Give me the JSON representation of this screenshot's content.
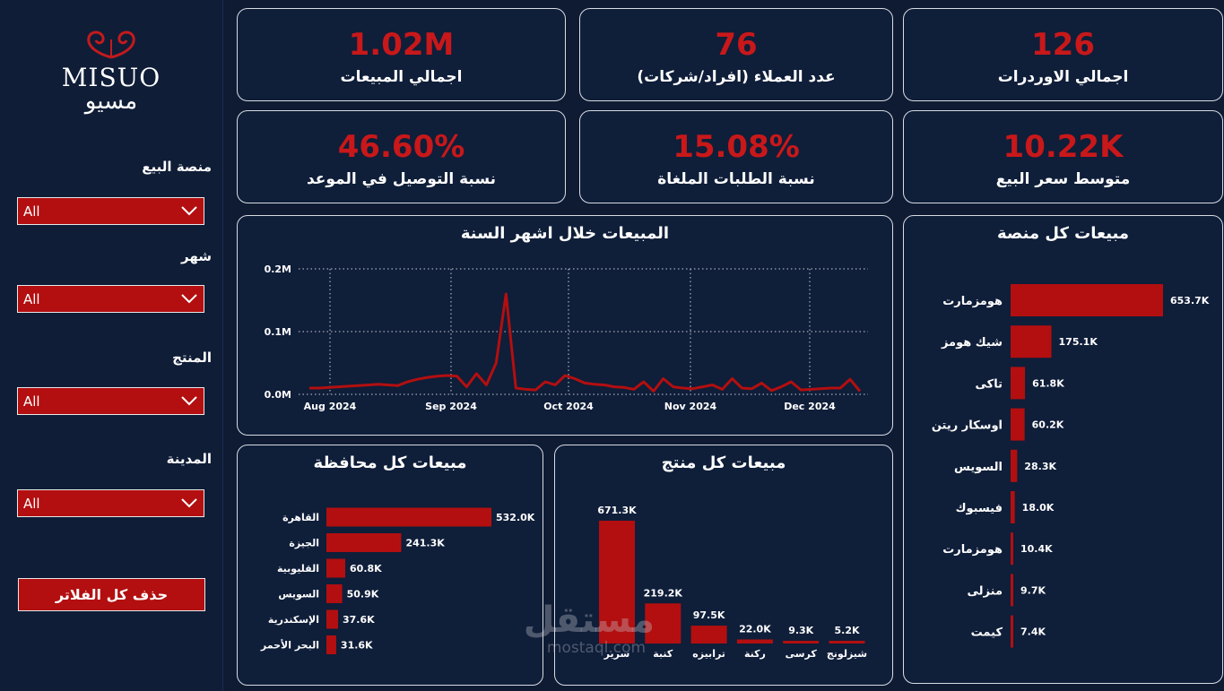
{
  "sidebar": {
    "logo_en": "MISUO",
    "logo_ar": "مسيو",
    "filters": [
      {
        "label": "منصة البيع",
        "value": "All"
      },
      {
        "label": "شهر",
        "value": "All"
      },
      {
        "label": "المنتج",
        "value": "All"
      },
      {
        "label": "المدينة",
        "value": "All"
      }
    ],
    "clear_label": "حذف كل الفلاتر"
  },
  "kpis": [
    {
      "value": "126",
      "label": "اجمالي الاوردرات"
    },
    {
      "value": "76",
      "label": "عدد العملاء (افراد/شركات)"
    },
    {
      "value": "1.02M",
      "label": "اجمالي المبيعات"
    },
    {
      "value": "10.22K",
      "label": "متوسط سعر البيع"
    },
    {
      "value": "15.08%",
      "label": "نسبة الطلبات الملغاة"
    },
    {
      "value": "46.60%",
      "label": "نسبة التوصيل في الموعد"
    }
  ],
  "colors": {
    "accent": "#b30f10",
    "kpi_value": "#c8181a",
    "background": "#0e1b33",
    "card": "#0f1e39"
  },
  "watermark": {
    "ar": "مستقل",
    "en": "mostaql.com"
  },
  "chart_data": [
    {
      "id": "line",
      "type": "line",
      "title": "المبيعات خلال اشهر السنة",
      "x_ticks": [
        "Aug 2024",
        "Sep 2024",
        "Oct 2024",
        "Nov 2024",
        "Dec 2024"
      ],
      "y_ticks": [
        "0.0M",
        "0.1M",
        "0.2M"
      ],
      "ylim": [
        0,
        0.2
      ],
      "grid": true,
      "values": [
        0.01,
        0.01,
        0.011,
        0.012,
        0.013,
        0.014,
        0.015,
        0.016,
        0.015,
        0.014,
        0.02,
        0.024,
        0.027,
        0.029,
        0.03,
        0.029,
        0.012,
        0.033,
        0.015,
        0.05,
        0.16,
        0.01,
        0.008,
        0.007,
        0.02,
        0.015,
        0.03,
        0.025,
        0.018,
        0.016,
        0.015,
        0.012,
        0.011,
        0.008,
        0.02,
        0.005,
        0.025,
        0.012,
        0.01,
        0.009,
        0.012,
        0.015,
        0.008,
        0.025,
        0.01,
        0.009,
        0.018,
        0.006,
        0.012,
        0.02,
        0.007,
        0.008,
        0.009,
        0.01,
        0.01,
        0.024,
        0.005
      ]
    },
    {
      "id": "platform",
      "type": "bar",
      "orientation": "horizontal",
      "title": "مبيعات كل منصة",
      "categories": [
        "هومزمارت",
        "شيك هومز",
        "تاكى",
        "اوسكار ريتن",
        "السويس",
        "فيسبوك",
        "هومزمارت",
        "منزلى",
        "كيمت"
      ],
      "values": [
        653.7,
        175.1,
        61.8,
        60.2,
        28.3,
        18.0,
        10.4,
        9.7,
        7.4
      ],
      "labels": [
        "653.7K",
        "175.1K",
        "61.8K",
        "60.2K",
        "28.3K",
        "18.0K",
        "10.4K",
        "9.7K",
        "7.4K"
      ]
    },
    {
      "id": "gov",
      "type": "bar",
      "orientation": "horizontal",
      "title": "مبيعات كل محافظة",
      "categories": [
        "القاهرة",
        "الجيزة",
        "القليوبية",
        "السويس",
        "الإسكندرية",
        "البحر الأحمر"
      ],
      "values": [
        532.0,
        241.3,
        60.8,
        50.9,
        37.6,
        31.6
      ],
      "labels": [
        "532.0K",
        "241.3K",
        "60.8K",
        "50.9K",
        "37.6K",
        "31.6K"
      ]
    },
    {
      "id": "product",
      "type": "bar",
      "orientation": "vertical",
      "title": "مبيعات كل منتج",
      "categories": [
        "سرير",
        "كنبة",
        "ترابيزه",
        "ركنة",
        "كرسى",
        "شيزلونج"
      ],
      "values": [
        671.3,
        219.2,
        97.5,
        22.0,
        9.3,
        5.2
      ],
      "labels": [
        "671.3K",
        "219.2K",
        "97.5K",
        "22.0K",
        "9.3K",
        "5.2K"
      ]
    }
  ]
}
